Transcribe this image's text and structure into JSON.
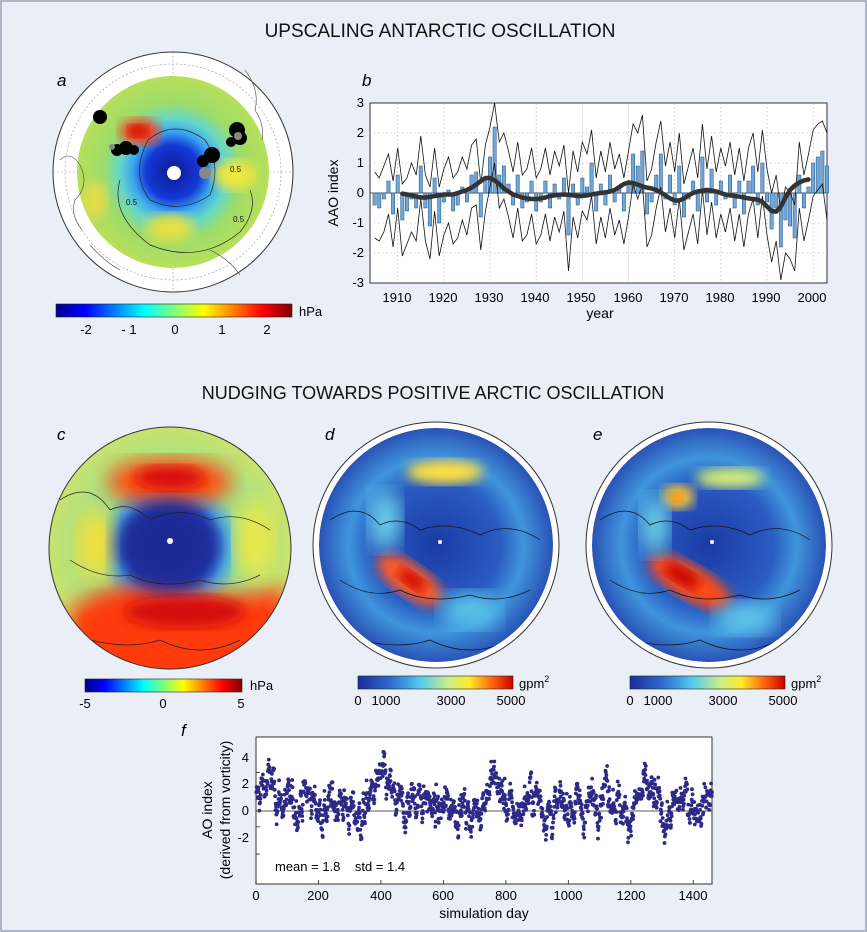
{
  "headings": {
    "top": "UPSCALING ANTARCTIC OSCILLATION",
    "middle": "NUDGING TOWARDS POSITIVE ARCTIC OSCILLATION"
  },
  "panel_labels": {
    "a": "a",
    "b": "b",
    "c": "c",
    "d": "d",
    "e": "e",
    "f": "f"
  },
  "colorbars": {
    "a": {
      "ticks": [
        "-2",
        "- 1",
        "0",
        "1",
        "2"
      ],
      "unit": "hPa",
      "colormap": "jet"
    },
    "c": {
      "ticks": [
        "-5",
        "0",
        "5"
      ],
      "unit": "hPa",
      "colormap": "jet"
    },
    "d": {
      "ticks": [
        "0",
        "1000",
        "3000",
        "5000"
      ],
      "unit": "gpm",
      "unit_sup": "2",
      "colormap": "jet"
    },
    "e": {
      "ticks": [
        "0",
        "1000",
        "3000",
        "5000"
      ],
      "unit": "gpm",
      "unit_sup": "2",
      "colormap": "jet"
    }
  },
  "map_contour_label": "0.5",
  "chart_data": [
    {
      "panel": "b",
      "type": "bar",
      "xlabel": "year",
      "ylabel": "AAO index",
      "xlim": [
        1904,
        2003
      ],
      "ylim": [
        -3,
        3
      ],
      "xticks": [
        "1910",
        "1920",
        "1930",
        "1940",
        "1950",
        "1960",
        "1970",
        "1980",
        "1990",
        "2000"
      ],
      "yticks": [
        "3",
        "2",
        "1",
        "0",
        "-1",
        "-2",
        "-3"
      ],
      "grid": true,
      "x_start": 1905,
      "series": [
        {
          "kind": "bars",
          "values": [
            -0.4,
            -0.5,
            -0.2,
            0.4,
            -0.7,
            0.6,
            -0.9,
            -0.6,
            -0.2,
            -0.5,
            0.9,
            -0.5,
            -1.1,
            0.5,
            -1.0,
            -0.3,
            0.1,
            -0.6,
            -0.4,
            0.2,
            -0.3,
            0.6,
            0.7,
            -0.8,
            0.5,
            1.2,
            2.2,
            0.6,
            0.9,
            0.3,
            -0.4,
            0.6,
            -0.5,
            -0.3,
            0.4,
            -0.6,
            -0.3,
            0.4,
            -0.5,
            0.3,
            -0.2,
            0.5,
            -1.4,
            0.3,
            -0.4,
            0.5,
            0.2,
            1.0,
            -0.6,
            0.3,
            -0.4,
            0.6,
            -0.3,
            0.2,
            -0.6,
            0.3,
            1.3,
            0.9,
            1.4,
            -0.7,
            -0.3,
            0.6,
            1.3,
            -0.2,
            0.6,
            -0.4,
            0.9,
            -0.8,
            -0.2,
            0.4,
            -0.6,
            1.2,
            -0.3,
            0.8,
            -0.4,
            0.4,
            -0.2,
            0.6,
            -0.5,
            0.4,
            -0.7,
            0.4,
            0.9,
            -0.4,
            1.0,
            -0.3,
            -1.2,
            -0.5,
            -1.8,
            -0.9,
            -1.1,
            -1.5,
            0.6,
            -0.5,
            0.2,
            1.0,
            1.2,
            1.4,
            0.9
          ]
        },
        {
          "kind": "upper-bound",
          "values": [
            0.7,
            0.5,
            0.9,
            1.3,
            0.4,
            1.5,
            0.3,
            0.5,
            1.0,
            0.6,
            1.9,
            0.6,
            0.2,
            1.5,
            0.2,
            0.8,
            1.2,
            0.5,
            0.7,
            1.2,
            0.8,
            1.6,
            1.8,
            0.3,
            1.6,
            2.2,
            3.0,
            1.7,
            2.0,
            1.4,
            0.7,
            1.7,
            0.6,
            0.8,
            1.5,
            0.5,
            0.8,
            1.5,
            0.6,
            1.4,
            0.9,
            1.6,
            0.0,
            1.4,
            0.7,
            1.7,
            1.3,
            2.1,
            0.5,
            1.4,
            0.7,
            1.7,
            0.8,
            1.3,
            0.5,
            1.4,
            2.3,
            2.0,
            2.6,
            0.4,
            0.8,
            1.7,
            2.4,
            0.9,
            1.7,
            0.7,
            2.0,
            0.3,
            0.9,
            1.5,
            0.5,
            2.3,
            0.8,
            1.9,
            0.7,
            1.5,
            0.9,
            1.7,
            0.6,
            1.5,
            0.4,
            1.5,
            2.0,
            0.7,
            2.1,
            0.8,
            0.0,
            0.6,
            -0.6,
            0.2,
            0.0,
            -0.4,
            1.7,
            0.6,
            1.3,
            2.1,
            2.3,
            2.4,
            2.0
          ]
        },
        {
          "kind": "lower-bound",
          "values": [
            -1.5,
            -1.6,
            -1.3,
            -0.7,
            -1.8,
            -0.5,
            -2.1,
            -1.7,
            -1.3,
            -1.6,
            -0.2,
            -1.6,
            -2.2,
            -0.6,
            -2.1,
            -1.4,
            -1.0,
            -1.7,
            -1.5,
            -0.9,
            -1.4,
            -0.5,
            -0.4,
            -1.9,
            -0.6,
            0.2,
            1.0,
            -0.5,
            -0.2,
            -0.8,
            -1.5,
            -0.5,
            -1.6,
            -1.4,
            -0.7,
            -1.7,
            -1.4,
            -0.7,
            -1.6,
            -0.8,
            -1.3,
            -0.6,
            -2.6,
            -0.8,
            -1.5,
            -0.6,
            -0.9,
            -0.1,
            -1.7,
            -0.8,
            -1.5,
            -0.5,
            -1.4,
            -0.9,
            -1.7,
            -0.8,
            0.3,
            -0.2,
            0.3,
            -1.8,
            -1.4,
            -0.5,
            0.2,
            -1.3,
            -0.5,
            -1.5,
            -0.2,
            -1.9,
            -1.3,
            -0.7,
            -1.7,
            0.1,
            -1.4,
            -0.3,
            -1.5,
            -0.7,
            -1.3,
            -0.5,
            -1.6,
            -0.7,
            -1.8,
            -0.7,
            -0.2,
            -1.5,
            -0.1,
            -1.4,
            -2.3,
            -1.6,
            -2.9,
            -2.0,
            -2.2,
            -2.6,
            -0.5,
            -1.6,
            -0.9,
            -0.1,
            0.1,
            0.3,
            -0.9
          ]
        },
        {
          "kind": "smoothed",
          "x_start": 1911,
          "values": [
            -0.02,
            -0.05,
            -0.08,
            -0.12,
            -0.15,
            -0.15,
            -0.13,
            -0.1,
            -0.08,
            -0.05,
            -0.05,
            -0.05,
            0.0,
            0.05,
            0.1,
            0.18,
            0.28,
            0.4,
            0.5,
            0.5,
            0.42,
            0.3,
            0.15,
            0.05,
            -0.05,
            -0.1,
            -0.15,
            -0.18,
            -0.2,
            -0.2,
            -0.18,
            -0.15,
            -0.1,
            -0.08,
            -0.06,
            -0.05,
            -0.06,
            -0.08,
            -0.1,
            -0.1,
            -0.08,
            -0.05,
            -0.02,
            0.0,
            0.02,
            0.05,
            0.1,
            0.2,
            0.3,
            0.35,
            0.33,
            0.28,
            0.22,
            0.18,
            0.15,
            0.1,
            0.02,
            -0.08,
            -0.18,
            -0.25,
            -0.25,
            -0.18,
            -0.08,
            0.0,
            0.05,
            0.08,
            0.1,
            0.08,
            0.05,
            0.0,
            -0.05,
            -0.08,
            -0.1,
            -0.12,
            -0.15,
            -0.18,
            -0.2,
            -0.22,
            -0.3,
            -0.45,
            -0.6,
            -0.62,
            -0.45,
            -0.15,
            0.1,
            0.25,
            0.35,
            0.42,
            0.45
          ]
        }
      ]
    },
    {
      "panel": "f",
      "type": "scatter",
      "xlabel": "simulation day",
      "ylabel": "AO index",
      "ylabel2": "(derived from vorticity)",
      "xlim": [
        0,
        1460
      ],
      "ylim": [
        -4.2,
        6.6
      ],
      "xticks": [
        "0",
        "200",
        "400",
        "600",
        "800",
        "1000",
        "1200",
        "1400"
      ],
      "yticks": [
        "4",
        "2",
        "0",
        "-2"
      ],
      "annotation": "mean = 1.8    std = 1.4",
      "mean": 1.8,
      "std": 1.4,
      "point_count": 1460
    }
  ]
}
